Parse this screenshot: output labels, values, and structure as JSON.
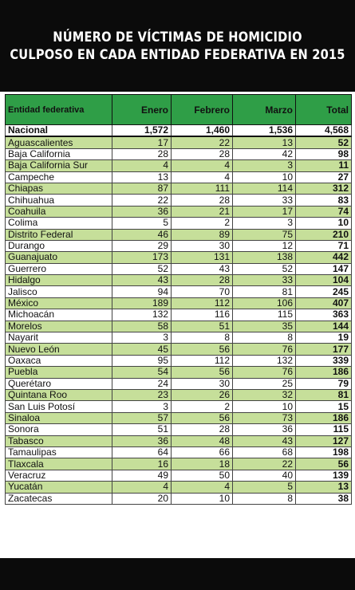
{
  "title": {
    "line1": "NÚMERO DE VÍCTIMAS DE HOMICIDIO",
    "line2": "CULPOSO EN CADA ENTIDAD FEDERATIVA EN 2015"
  },
  "colors": {
    "header": "#2f9e47",
    "row_alt": "#c6df9a",
    "background": "#0b0b0b"
  },
  "chart_data": {
    "type": "table",
    "title": "NÚMERO DE VÍCTIMAS DE HOMICIDIO CULPOSO EN CADA ENTIDAD FEDERATIVA EN 2015",
    "columns": [
      "Entidad federativa",
      "Enero",
      "Febrero",
      "Marzo",
      "Total"
    ],
    "rows": [
      [
        "Nacional",
        "1,572",
        "1,460",
        "1,536",
        "4,568"
      ],
      [
        "Aguascalientes",
        "17",
        "22",
        "13",
        "52"
      ],
      [
        "Baja California",
        "28",
        "28",
        "42",
        "98"
      ],
      [
        "Baja California Sur",
        "4",
        "4",
        "3",
        "11"
      ],
      [
        "Campeche",
        "13",
        "4",
        "10",
        "27"
      ],
      [
        "Chiapas",
        "87",
        "111",
        "114",
        "312"
      ],
      [
        "Chihuahua",
        "22",
        "28",
        "33",
        "83"
      ],
      [
        "Coahuila",
        "36",
        "21",
        "17",
        "74"
      ],
      [
        "Colima",
        "5",
        "2",
        "3",
        "10"
      ],
      [
        "Distrito Federal",
        "46",
        "89",
        "75",
        "210"
      ],
      [
        "Durango",
        "29",
        "30",
        "12",
        "71"
      ],
      [
        "Guanajuato",
        "173",
        "131",
        "138",
        "442"
      ],
      [
        "Guerrero",
        "52",
        "43",
        "52",
        "147"
      ],
      [
        "Hidalgo",
        "43",
        "28",
        "33",
        "104"
      ],
      [
        "Jalisco",
        "94",
        "70",
        "81",
        "245"
      ],
      [
        "México",
        "189",
        "112",
        "106",
        "407"
      ],
      [
        "Michoacán",
        "132",
        "116",
        "115",
        "363"
      ],
      [
        "Morelos",
        "58",
        "51",
        "35",
        "144"
      ],
      [
        "Nayarit",
        "3",
        "8",
        "8",
        "19"
      ],
      [
        "Nuevo León",
        "45",
        "56",
        "76",
        "177"
      ],
      [
        "Oaxaca",
        "95",
        "112",
        "132",
        "339"
      ],
      [
        "Puebla",
        "54",
        "56",
        "76",
        "186"
      ],
      [
        "Querétaro",
        "24",
        "30",
        "25",
        "79"
      ],
      [
        "Quintana Roo",
        "23",
        "26",
        "32",
        "81"
      ],
      [
        "San Luis Potosí",
        "3",
        "2",
        "10",
        "15"
      ],
      [
        "Sinaloa",
        "57",
        "56",
        "73",
        "186"
      ],
      [
        "Sonora",
        "51",
        "28",
        "36",
        "115"
      ],
      [
        "Tabasco",
        "36",
        "48",
        "43",
        "127"
      ],
      [
        "Tamaulipas",
        "64",
        "66",
        "68",
        "198"
      ],
      [
        "Tlaxcala",
        "16",
        "18",
        "22",
        "56"
      ],
      [
        "Veracruz",
        "49",
        "50",
        "40",
        "139"
      ],
      [
        "Yucatán",
        "4",
        "4",
        "5",
        "13"
      ],
      [
        "Zacatecas",
        "20",
        "10",
        "8",
        "38"
      ]
    ]
  }
}
